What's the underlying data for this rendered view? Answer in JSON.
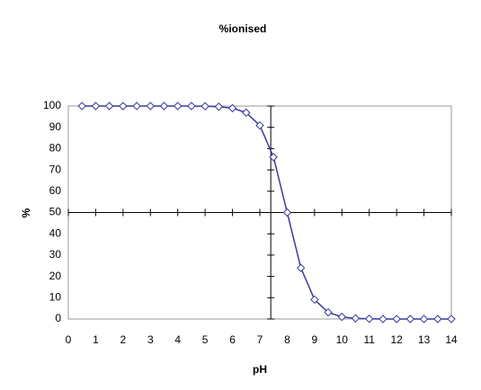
{
  "chart_data": {
    "type": "scatter-line",
    "title": "%ionised",
    "x_label": "pH",
    "y_label": "%",
    "x": [
      0.5,
      1,
      1.5,
      2,
      2.5,
      3,
      3.5,
      4,
      4.5,
      5,
      5.5,
      6,
      6.5,
      7,
      7.5,
      8,
      8.5,
      9,
      9.5,
      10,
      10.5,
      11,
      11.5,
      12,
      12.5,
      13,
      13.5,
      14
    ],
    "series": [
      {
        "name": "%ionised",
        "color": "#3a3a9c",
        "values": [
          100,
          100,
          100,
          100,
          100,
          100,
          100,
          100,
          100,
          99.9,
          99.7,
          99.0,
          96.9,
          90.9,
          76.0,
          50,
          24.0,
          9.1,
          3.1,
          1.0,
          0.3,
          0.1,
          0,
          0,
          0,
          0,
          0,
          0
        ]
      }
    ],
    "xlim": [
      0,
      14
    ],
    "xticks": [
      0,
      1,
      2,
      3,
      4,
      5,
      6,
      7,
      8,
      9,
      10,
      11,
      12,
      13,
      14
    ],
    "ylim": [
      0,
      100
    ],
    "yticks": [
      0,
      10,
      20,
      30,
      40,
      50,
      60,
      70,
      80,
      90,
      100
    ],
    "y_axis_crosses_x": 7.4,
    "x_axis_crosses_y": 50
  }
}
